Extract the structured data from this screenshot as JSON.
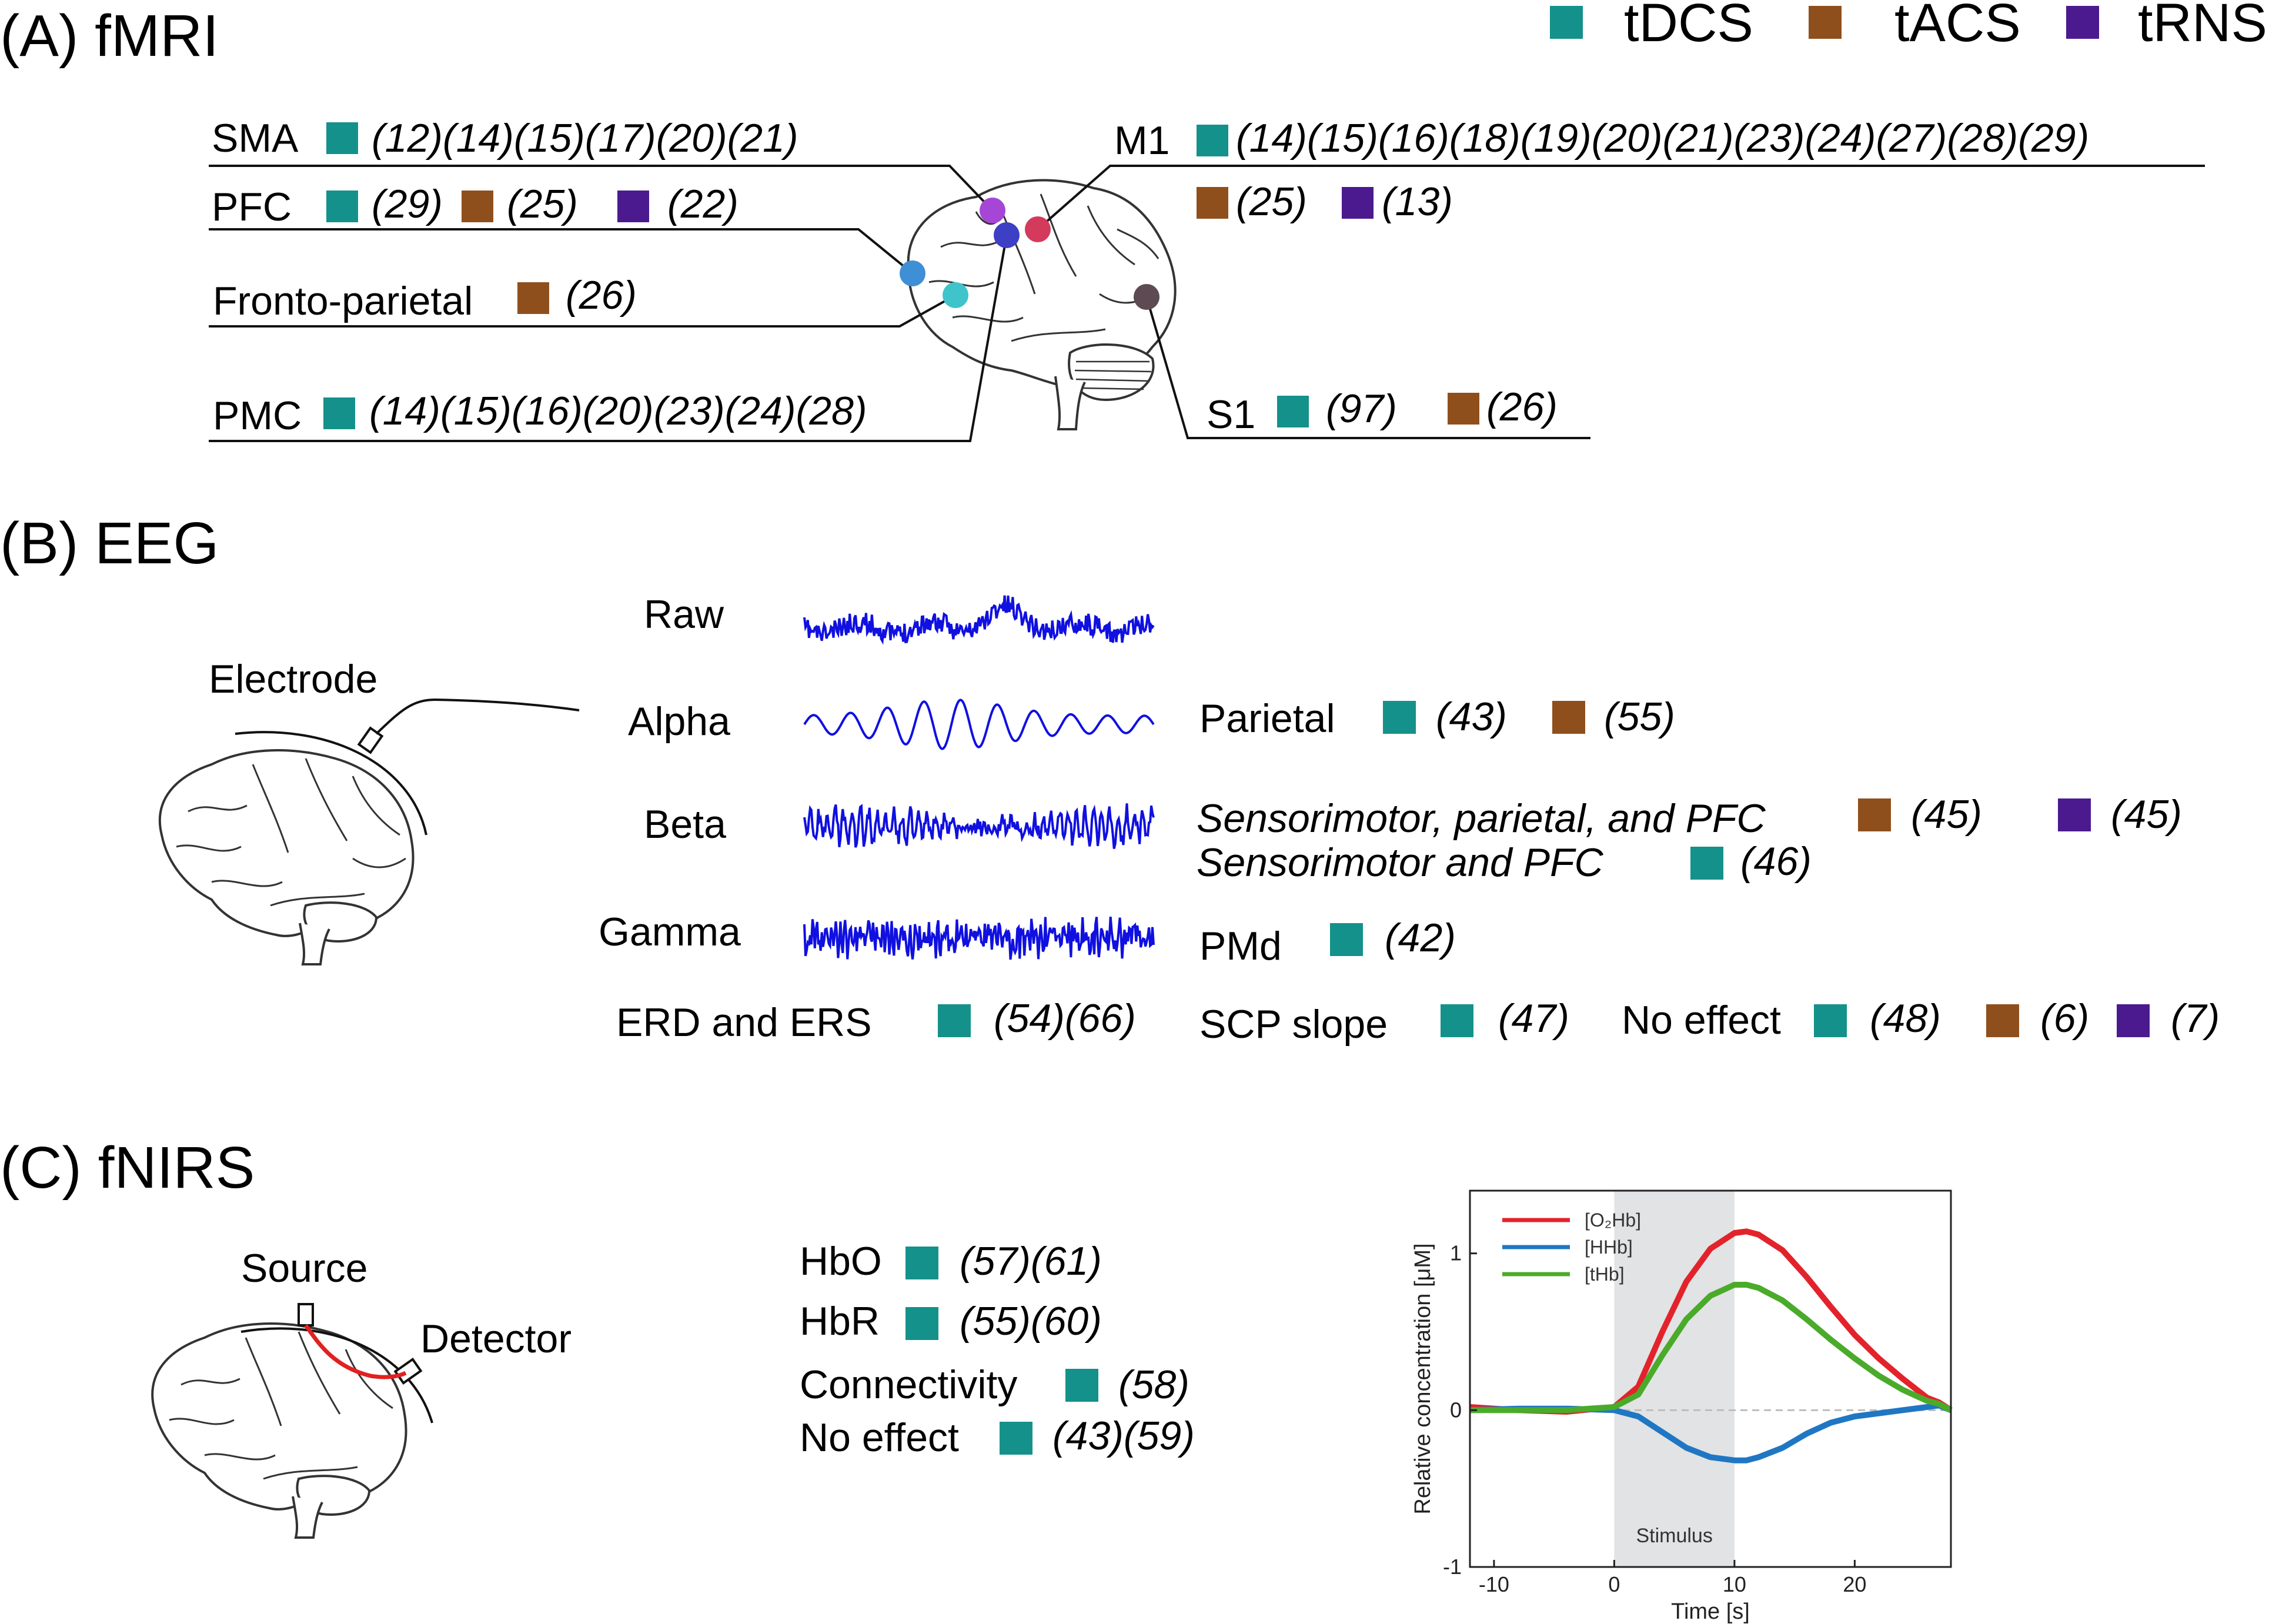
{
  "colors": {
    "tdcs": "#14918a",
    "tacs": "#8f4f1c",
    "trns": "#4b1a8f",
    "eeg_trace": "#1010e0",
    "hbo": "#e3232b",
    "hhb": "#1f77c4",
    "thb": "#4aab2a"
  },
  "legend": {
    "items": [
      {
        "label": "tDCS",
        "color_key": "tdcs"
      },
      {
        "label": "tACS",
        "color_key": "tacs"
      },
      {
        "label": "tRNS",
        "color_key": "trns"
      }
    ]
  },
  "panel_a": {
    "title": "(A) fMRI",
    "regions": [
      {
        "name": "SMA",
        "dot_color": "#a546d6",
        "entries": [
          {
            "stim": "tdcs",
            "refs": "(12)(14)(15)(17)(20)(21)"
          }
        ]
      },
      {
        "name": "PFC",
        "dot_color": "#3f8fd6",
        "entries": [
          {
            "stim": "tdcs",
            "refs": "(29)"
          },
          {
            "stim": "tacs",
            "refs": "(25)"
          },
          {
            "stim": "trns",
            "refs": "(22)"
          }
        ]
      },
      {
        "name": "Fronto-parietal",
        "dot_color": "#3fc4cc",
        "entries": [
          {
            "stim": "tacs",
            "refs": "(26)"
          }
        ]
      },
      {
        "name": "PMC",
        "dot_color": "#3d3fc4",
        "entries": [
          {
            "stim": "tdcs",
            "refs": "(14)(15)(16)(20)(23)(24)(28)"
          }
        ]
      },
      {
        "name": "M1",
        "dot_color": "#d43a5c",
        "entries": [
          {
            "stim": "tdcs",
            "refs": "(14)(15)(16)(18)(19)(20)(21)(23)(24)(27)(28)(29)"
          },
          {
            "stim": "tacs",
            "refs": "(25)"
          },
          {
            "stim": "trns",
            "refs": "(13)"
          }
        ]
      },
      {
        "name": "S1",
        "dot_color": "#5e4a52",
        "entries": [
          {
            "stim": "tdcs",
            "refs": "(97)"
          },
          {
            "stim": "tacs",
            "refs": "(26)"
          }
        ]
      }
    ]
  },
  "panel_b": {
    "title": "(B) EEG",
    "electrode_label": "Electrode",
    "bands": [
      {
        "name": "Raw"
      },
      {
        "name": "Alpha"
      },
      {
        "name": "Beta"
      },
      {
        "name": "Gamma"
      }
    ],
    "findings": [
      {
        "label": "Parietal",
        "italic": false,
        "entries": [
          {
            "stim": "tdcs",
            "refs": "(43)"
          },
          {
            "stim": "tacs",
            "refs": "(55)"
          }
        ]
      },
      {
        "label": "Sensorimotor, parietal, and PFC",
        "italic": true,
        "entries": [
          {
            "stim": "tacs",
            "refs": "(45)"
          },
          {
            "stim": "trns",
            "refs": "(45)"
          }
        ]
      },
      {
        "label": "Sensorimotor and PFC",
        "italic": true,
        "entries": [
          {
            "stim": "tdcs",
            "refs": "(46)"
          }
        ]
      },
      {
        "label": "PMd",
        "italic": false,
        "entries": [
          {
            "stim": "tdcs",
            "refs": "(42)"
          }
        ]
      },
      {
        "label": "ERD and ERS",
        "italic": false,
        "entries": [
          {
            "stim": "tdcs",
            "refs": "(54)(66)"
          }
        ]
      },
      {
        "label": "SCP slope",
        "italic": false,
        "entries": [
          {
            "stim": "tdcs",
            "refs": "(47)"
          }
        ]
      },
      {
        "label": "No effect",
        "italic": false,
        "entries": [
          {
            "stim": "tdcs",
            "refs": "(48)"
          },
          {
            "stim": "tacs",
            "refs": "(6)"
          },
          {
            "stim": "trns",
            "refs": "(7)"
          }
        ]
      }
    ]
  },
  "panel_c": {
    "title": "(C) fNIRS",
    "source_label": "Source",
    "detector_label": "Detector",
    "findings": [
      {
        "label": "HbO",
        "entries": [
          {
            "stim": "tdcs",
            "refs": "(57)(61)"
          }
        ]
      },
      {
        "label": "HbR",
        "entries": [
          {
            "stim": "tdcs",
            "refs": "(55)(60)"
          }
        ]
      },
      {
        "label": "Connectivity",
        "entries": [
          {
            "stim": "tdcs",
            "refs": "(58)"
          }
        ]
      },
      {
        "label": "No effect",
        "entries": [
          {
            "stim": "tdcs",
            "refs": "(43)(59)"
          }
        ]
      }
    ]
  },
  "chart_data": {
    "type": "line",
    "xlabel": "Time [s]",
    "ylabel": "Relative concentration [μM]",
    "xlim": [
      -12,
      28
    ],
    "ylim": [
      -1,
      1.4
    ],
    "xticks": [
      -10,
      0,
      10,
      20
    ],
    "yticks": [
      -1,
      0,
      1
    ],
    "stimulus": {
      "label": "Stimulus",
      "start": 0,
      "end": 10
    },
    "legend_position": "top-left",
    "series": [
      {
        "name": "[O₂Hb]",
        "color_key": "hbo",
        "x": [
          -12,
          -8,
          -4,
          0,
          2,
          4,
          6,
          8,
          10,
          11,
          12,
          14,
          16,
          18,
          20,
          22,
          24,
          26,
          27,
          28
        ],
        "y": [
          0.02,
          0.0,
          -0.01,
          0.02,
          0.15,
          0.5,
          0.82,
          1.03,
          1.13,
          1.14,
          1.12,
          1.02,
          0.85,
          0.66,
          0.48,
          0.33,
          0.2,
          0.08,
          0.05,
          0.0
        ]
      },
      {
        "name": "[HHb]",
        "color_key": "hhb",
        "x": [
          -12,
          -8,
          -4,
          0,
          2,
          4,
          6,
          8,
          10,
          11,
          12,
          14,
          16,
          18,
          20,
          22,
          24,
          26,
          27,
          28
        ],
        "y": [
          0.0,
          0.01,
          0.01,
          0.0,
          -0.04,
          -0.14,
          -0.24,
          -0.3,
          -0.32,
          -0.32,
          -0.3,
          -0.24,
          -0.15,
          -0.08,
          -0.04,
          -0.02,
          0.0,
          0.02,
          0.03,
          0.0
        ]
      },
      {
        "name": "[tHb]",
        "color_key": "thb",
        "x": [
          -12,
          -8,
          -4,
          0,
          2,
          4,
          6,
          8,
          10,
          11,
          12,
          14,
          16,
          18,
          20,
          22,
          24,
          26,
          27,
          28
        ],
        "y": [
          0.0,
          0.0,
          0.0,
          0.02,
          0.1,
          0.35,
          0.58,
          0.73,
          0.8,
          0.8,
          0.78,
          0.7,
          0.58,
          0.45,
          0.33,
          0.22,
          0.13,
          0.06,
          0.04,
          0.0
        ]
      }
    ]
  }
}
